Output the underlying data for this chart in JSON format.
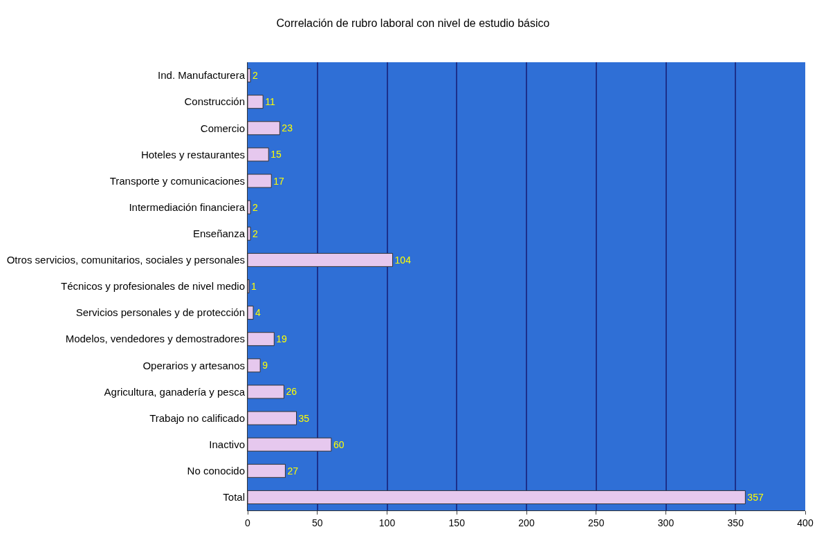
{
  "chart_data": {
    "type": "bar",
    "title": "Correlación de rubro laboral con nivel de estudio básico",
    "orientation": "horizontal",
    "categories": [
      "Ind. Manufacturera",
      "Construcción",
      "Comercio",
      "Hoteles y restaurantes",
      "Transporte y comunicaciones",
      "Intermediación financiera",
      "Enseñanza",
      "Otros servicios, comunitarios, sociales y personales",
      "Técnicos y profesionales de nivel medio",
      "Servicios personales y de protección",
      "Modelos, vendedores y demostradores",
      "Operarios y artesanos",
      "Agricultura, ganadería y pesca",
      "Trabajo no calificado",
      "Inactivo",
      "No conocido",
      "Total"
    ],
    "values": [
      2,
      11,
      23,
      15,
      17,
      2,
      2,
      104,
      1,
      4,
      19,
      9,
      26,
      35,
      60,
      27,
      357
    ],
    "color": "#e6c8ee",
    "xlim": [
      0,
      400
    ],
    "xticks": [
      0,
      50,
      100,
      150,
      200,
      250,
      300,
      350,
      400
    ],
    "grid": "x",
    "data_labels": true,
    "legend": false
  }
}
